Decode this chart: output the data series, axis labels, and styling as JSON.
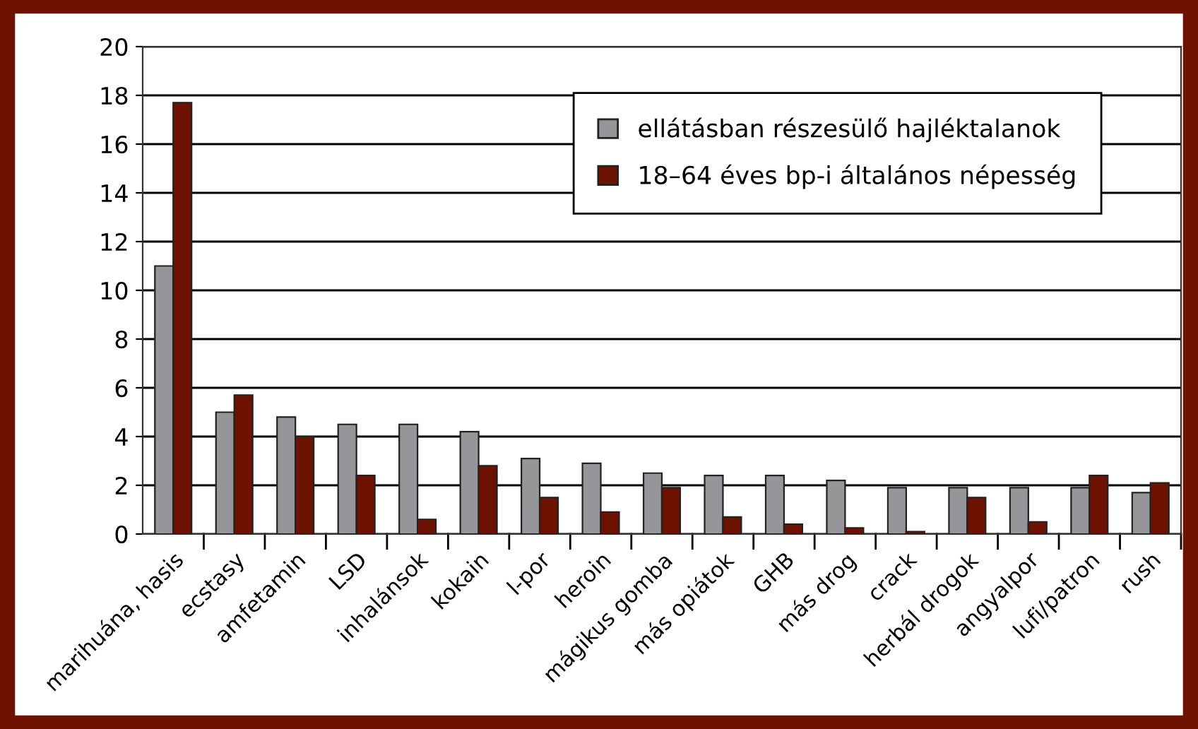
{
  "chart_data": {
    "type": "bar",
    "categories": [
      "marihuána, hasis",
      "ecstasy",
      "amfetamin",
      "LSD",
      "inhalánsok",
      "kokain",
      "l-por",
      "heroin",
      "mágikus gomba",
      "más opiátok",
      "GHB",
      "más drog",
      "crack",
      "herbál drogok",
      "angyalpor",
      "lufi/patron",
      "rush"
    ],
    "series": [
      {
        "name": "ellátásban részesülő hajléktalanok",
        "color": "#96969a",
        "values": [
          11,
          5,
          4.8,
          4.5,
          4.5,
          4.2,
          3.1,
          2.9,
          2.5,
          2.4,
          2.4,
          2.2,
          1.9,
          1.9,
          1.9,
          1.9,
          1.7
        ]
      },
      {
        "name": "18–64 éves bp-i általános népesség",
        "color": "#6e1200",
        "values": [
          17.7,
          5.7,
          4.0,
          2.4,
          0.6,
          2.8,
          1.5,
          0.9,
          1.9,
          0.7,
          0.4,
          0.25,
          0.1,
          1.5,
          0.5,
          2.4,
          2.1
        ]
      }
    ],
    "ylim": [
      0,
      20
    ],
    "yticks": [
      0,
      2,
      4,
      6,
      8,
      10,
      12,
      14,
      16,
      18,
      20
    ],
    "grid": "y",
    "legend": "top right"
  }
}
